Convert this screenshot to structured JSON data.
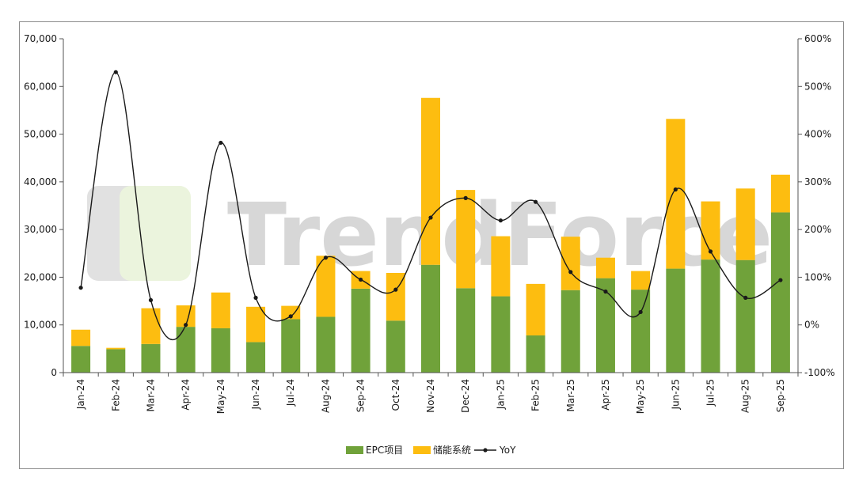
{
  "chart_data": {
    "type": "bar",
    "stacked": true,
    "categories": [
      "Jan-24",
      "Feb-24",
      "Mar-24",
      "Apr-24",
      "May-24",
      "Jun-24",
      "Jul-24",
      "Aug-24",
      "Sep-24",
      "Oct-24",
      "Nov-24",
      "Dec-24",
      "Jan-25",
      "Feb-25",
      "Mar-25",
      "Apr-25",
      "May-25",
      "Jun-25",
      "Jul-25",
      "Aug-25",
      "Sep-25"
    ],
    "series": [
      {
        "name": "EPC项目",
        "type": "bar",
        "color": "#70a23a",
        "values": [
          5600,
          4900,
          6000,
          9600,
          9300,
          6400,
          11200,
          11700,
          17600,
          10900,
          22600,
          17700,
          16000,
          7800,
          17300,
          19800,
          17400,
          21800,
          23700,
          23600,
          33600
        ]
      },
      {
        "name": "储能系统",
        "type": "bar",
        "color": "#fdbd10",
        "values": [
          3400,
          300,
          7500,
          4500,
          7500,
          7400,
          2800,
          12800,
          3700,
          10000,
          35000,
          20600,
          12600,
          10800,
          11200,
          4300,
          3900,
          31400,
          12200,
          15000,
          7900
        ]
      },
      {
        "name": "YoY",
        "type": "line",
        "axis": "right",
        "color": "#1a1a1a",
        "values": [
          78,
          530,
          52,
          0,
          382,
          57,
          18,
          141,
          95,
          74,
          225,
          266,
          219,
          258,
          111,
          70,
          27,
          284,
          154,
          57,
          94
        ]
      }
    ],
    "left_axis": {
      "min": 0,
      "max": 70000,
      "ticks": [
        "0",
        "10,000",
        "20,000",
        "30,000",
        "40,000",
        "50,000",
        "60,000",
        "70,000"
      ]
    },
    "right_axis": {
      "min": -100,
      "max": 600,
      "ticks": [
        "-100%",
        "0%",
        "100%",
        "200%",
        "300%",
        "400%",
        "500%",
        "600%"
      ]
    },
    "grid": false,
    "legend_position": "bottom",
    "title": ""
  },
  "watermark": {
    "text": "TrendForce"
  }
}
